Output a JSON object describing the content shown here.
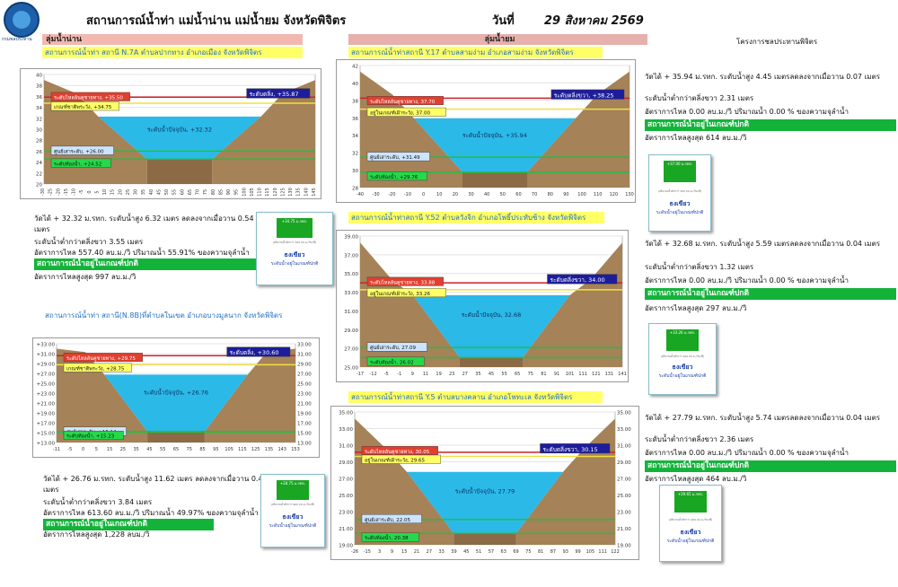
{
  "header": {
    "title": "สถานการณ์น้ำท่า แม่น้ำน่าน แม่น้ำยม จังหวัดพิจิตร",
    "date_label": "วันที่",
    "date": "29 สิงหาคม 2569",
    "logo_caption": "กรมชลประทาน"
  },
  "sections": {
    "nan": "ลุ่มน้ำน่าน",
    "yom": "ลุ่มน้ำยม",
    "project": "โครงการชลประทานพิจิตร"
  },
  "stations": {
    "n7a": {
      "title": "สถานการณ์น้ำท่า สถานี N.7A ตำบลปากทาง อำเภอเมือง จังหวัดพิจิตร",
      "chart_data": {
        "type": "area",
        "x_ticks": [
          "-30",
          "-25",
          "-20",
          "-15",
          "-10",
          "-5",
          "0",
          "5",
          "10",
          "15",
          "20",
          "25",
          "30",
          "35",
          "40",
          "45",
          "50",
          "55",
          "60",
          "65",
          "70",
          "75",
          "80",
          "85",
          "90",
          "95",
          "100",
          "105",
          "110",
          "115",
          "120",
          "125",
          "130",
          "135",
          "140",
          "145"
        ],
        "y_ticks": [
          "40",
          "38",
          "36",
          "34",
          "32",
          "30",
          "28",
          "26",
          "24",
          "22",
          "20"
        ],
        "ylim": [
          20,
          40
        ],
        "bank_right": "ระดับตลิ่ง, +35.87",
        "bank_left": "ระดับไหลล้นคูชายทาง, +35.50",
        "criteria": "เกณฑ์ชาติพระวัง, +34.75",
        "current": "ระดับน้ำปัจจุบัน, +32.32",
        "dead": "ศูนย์เสาระดับ, +26.00",
        "bed": "ระดับท้องน้ำ, +24.52",
        "levels": {
          "bank_right": 35.87,
          "bank_left": 35.5,
          "criteria": 34.75,
          "current": 32.32,
          "dead": 26.0,
          "bed": 24.52
        }
      },
      "info": [
        "วัดได้ + 32.32 ม.รทก. ระดับน้ำสูง 6.32 เมตร ลดลงจากเมื่อวาน 0.54 เมตร",
        "ระดับน้ำต่ำกว่าตลิ่งขวา 3.55  เมตร",
        "อัตราการไหล 557.40 ลบ.ม./วิ ปริมาณน้ำ 55.91%  ของความจุลำน้ำ",
        "สถานการณ์น้ำอยู่ในเกณฑ์ปกติ",
        "อัตราการไหลสูงสุด 997 ลบ.ม./วิ"
      ],
      "flag": {
        "label": "ธงเขียว",
        "sub": "ระดับน้ำอยู่ในเกณฑ์ปกติ",
        "flag_text": "+34.75 ม.รทก.",
        "tiny": "(ปริมาณน้ำต่ำกว่า 700 ลบ.ม./วินาที)"
      }
    },
    "n8b": {
      "title": "สถานการณ์น้ำท่า สถานี(N.8B)ที่ตำบลในเขต อำเภอบางมูลนาก จังหวัดพิจิตร",
      "chart_data": {
        "type": "area",
        "x_ticks": [
          "-11",
          "-5",
          "0",
          "5",
          "15",
          "25",
          "35",
          "45",
          "55",
          "65",
          "75",
          "85",
          "95",
          "105",
          "115",
          "125",
          "135",
          "143",
          "153"
        ],
        "y_ticks": [
          "+33.00",
          "+31.00",
          "+29.00",
          "+27.00",
          "+25.00",
          "+23.00",
          "+21.00",
          "+19.00",
          "+17.00",
          "+15.00",
          "+13.00"
        ],
        "y_ticks_right": [
          "33.00",
          "31.00",
          "29.00",
          "27.00",
          "25.00",
          "23.00",
          "21.00",
          "19.00",
          "17.00",
          "15.00",
          "13.00"
        ],
        "ylim": [
          13,
          33
        ],
        "bank_right": "ระดับตลิ่ง, +30.60",
        "bank_left": "ระดับไหลล้นคูชายทาง, +29.75",
        "criteria": "เกณฑ์ชาติพระวัง, +28.75",
        "current": "ระดับน้ำปัจจุบัน, +26.76",
        "dead": "ศูนย์เสาระดับ, +15.14",
        "bed": "ระดับท้องน้ำ, +15.23",
        "levels": {
          "bank_right": 30.6,
          "bank_left": 29.75,
          "criteria": 28.75,
          "current": 26.76,
          "dead": 15.14,
          "bed": 15.23
        }
      },
      "info": [
        "วัดได้ + 26.76 ม.รทก. ระดับน้ำสูง 11.62 เมตร ลดลงจากเมื่อวาน 0.43 เมตร",
        "ระดับน้ำต่ำกว่าตลิ่งขวา 3.84  เมตร",
        "อัตราการไหล 613.60 ลบ.ม./วิ ปริมาณน้ำ 49.97%  ของความจุลำน้ำ",
        "สถานการณ์น้ำอยู่ในเกณฑ์ปกติ",
        "อัตราการไหลสูงสุด 1,228 ลบม./วิ"
      ],
      "flag": {
        "label": "ธงเขียว",
        "sub": "ระดับน้ำอยู่ในเกณฑ์ปกติ",
        "flag_text": "+28.75 ม.รทก.",
        "tiny": "(ปริมาณน้ำต่ำกว่า 900 ลบ.ม./วินาที)"
      }
    },
    "y17": {
      "title": "สถานการณ์น้ำท่าสถานี Y.17  ตำบลสามง่าม อำเภอสามง่าม จังหวัดพิจิตร",
      "chart_data": {
        "type": "area",
        "x_ticks": [
          "-40",
          "-30",
          "-20",
          "-10",
          "0",
          "10",
          "20",
          "30",
          "40",
          "50",
          "60",
          "70",
          "80",
          "90",
          "100",
          "110",
          "120",
          "130"
        ],
        "y_ticks": [
          "42",
          "40",
          "38",
          "36",
          "34",
          "32",
          "30",
          "28"
        ],
        "ylim": [
          28,
          42
        ],
        "bank_right": "ระดับตลิ่งขวา, +38.25",
        "bank_left": "ระดับไหลล้นคูชายทาง, 37.70",
        "criteria": "อยู่ในเกณฑ์เฝ้าระวัง, 37.00",
        "current": "ระดับน้ำปัจจุบัน, +35.94",
        "dead": "ศูนย์เสาระดับ, +31.49",
        "bed": "ระดับท้องน้ำ, +29.76",
        "levels": {
          "bank_right": 38.25,
          "bank_left": 37.7,
          "criteria": 37.0,
          "current": 35.94,
          "dead": 31.49,
          "bed": 29.76
        }
      },
      "info": [
        "วัดได้ + 35.94 ม.รทก. ระดับน้ำสูง  4.45 เมตรลดลงจากเมื่อวาน 0.07 เมตร",
        "ระดับน้ำต่ำกว่าตลิ่งขวา 2.31  เมตร",
        "อัตราการไหล 0.00 ลบ.ม./วิ ปริมาณน้ำ 0.00 % ของความจุลำน้ำ",
        "สถานการณ์น้ำอยู่ในเกณฑ์ปกติ",
        "อัตราการไหลสูงสุด 614 ลบ.ม./วิ"
      ],
      "flag": {
        "label": "ธงเขียว",
        "sub": "ระดับน้ำอยู่ในเกณฑ์ปกติ",
        "flag_text": "+37.00 ม.รทก.",
        "tiny": "(ปริมาณน้ำต่ำกว่า 350 ลบ.ม./วินาที)"
      }
    },
    "y52": {
      "title": "สถานการณ์น้ำท่าสถานี Y.52 ตำบลวังจิก อำเภอโพธิ์ประทับช้าง จังหวัดพิจิตร",
      "chart_data": {
        "type": "area",
        "x_ticks": [
          "-17",
          "-12",
          "-5",
          "-1",
          "9",
          "11",
          "19",
          "23",
          "27",
          "35",
          "45",
          "55",
          "65",
          "75",
          "81",
          "91",
          "101",
          "111",
          "121",
          "131",
          "141"
        ],
        "y_ticks": [
          "39.00",
          "37.00",
          "35.00",
          "33.00",
          "31.00",
          "29.00",
          "27.00",
          "25.00"
        ],
        "ylim": [
          25,
          39
        ],
        "bank_right": "ระดับตลิ่งขวา, 34.00",
        "bank_left": "ระดับไหลล้นคูชายทาง, 33.88",
        "criteria": "อยู่ในเกณฑ์เฝ้าระวัง, 33.26",
        "current": "ระดับน้ำปัจจุบัน, 32.68",
        "dead": "ศูนย์เสาระดับ, 27.09",
        "bed": "ระดับท้องน้ำ, 26.02",
        "levels": {
          "bank_right": 34.0,
          "bank_left": 33.88,
          "criteria": 33.26,
          "current": 32.68,
          "dead": 27.09,
          "bed": 26.02
        }
      },
      "info": [
        "วัดได้ + 32.68 ม.รทก. ระดับน้ำสูง  5.59 เมตรลดลงจากเมื่อวาน 0.04 เมตร",
        "ระดับน้ำต่ำกว่าตลิ่งขวา 1.32  เมตร",
        "อัตราการไหล 0.00 ลบ.ม./วิ ปริมาณน้ำ 0.00 % ของความจุลำน้ำ",
        "สถานการณ์น้ำอยู่ในเกณฑ์ปกติ",
        "อัตราการไหลสูงสุด 297 ลบ.ม./วิ"
      ],
      "flag": {
        "label": "ธงเขียว",
        "sub": "ระดับน้ำอยู่ในเกณฑ์ปกติ",
        "flag_text": "+33.26 ม.รทก.",
        "tiny": "(ปริมาณน้ำต่ำกว่า 200 ลบ.ม./วินาที)"
      }
    },
    "y5": {
      "title": "สถานการณ์น้ำท่าสถานี Y.5 ตำบลบางคลาน อำเภอโพทะเล จังหวัดพิจิตร",
      "chart_data": {
        "type": "area",
        "x_ticks": [
          "-26",
          "-15",
          "3",
          "9",
          "15",
          "21",
          "27",
          "33",
          "39",
          "45",
          "51",
          "57",
          "63",
          "69",
          "75",
          "81",
          "87",
          "93",
          "99",
          "105",
          "111",
          "122"
        ],
        "y_ticks": [
          "35.00",
          "33.00",
          "31.00",
          "29.00",
          "27.00",
          "25.00",
          "23.00",
          "21.00",
          "19.00"
        ],
        "y_ticks_right": [
          "35.00",
          "33.00",
          "31.00",
          "29.00",
          "27.00",
          "25.00",
          "23.00",
          "21.00",
          "19.00"
        ],
        "ylim": [
          19,
          35
        ],
        "bank_right": "ระดับตลิ่งขวา, 30.15",
        "bank_left": "ระดับไหลล้นคูชายทาง, 30.05",
        "criteria": "อยู่ในเกณฑ์เฝ้าระวัง, 29.65",
        "current": "ระดับน้ำปัจจุบัน, 27.79",
        "dead": "ศูนย์เสาระดับ, 22.05",
        "bed": "ระดับท้องน้ำ, 20.38",
        "levels": {
          "bank_right": 30.15,
          "bank_left": 30.05,
          "criteria": 29.65,
          "current": 27.79,
          "dead": 22.05,
          "bed": 20.38
        }
      },
      "info": [
        "วัดได้ + 27.79 ม.รทก. ระดับน้ำสูง  5.74 เมตรลดลงจากเมื่อวาน 0.04 เมตร",
        "ระดับน้ำต่ำกว่าตลิ่งขวา 2.36  เมตร",
        "อัตราการไหล 0.00 ลบ.ม./วิ ปริมาณน้ำ 0.00 % ของความจุลำน้ำ",
        "สถานการณ์น้ำอยู่ในเกณฑ์ปกติ",
        "อัตราการไหลสูงสุด 464 ลบ.ม./วิ"
      ],
      "flag": {
        "label": "ธงเขียว",
        "sub": "ระดับน้ำอยู่ในเกณฑ์ปกติ",
        "flag_text": "+29.65 ม.รทก.",
        "tiny": "(ปริมาณน้ำต่ำกว่า 400 ลบ.ม./วินาที)"
      }
    }
  },
  "colors": {
    "water": "#2bb9e8",
    "rock": "#a58258",
    "bank_line": "#d0202a",
    "criteria_line": "#f0e040",
    "dead_line": "#20c040",
    "green_status": "#13b33a",
    "yellow_title": "#ffff66"
  }
}
